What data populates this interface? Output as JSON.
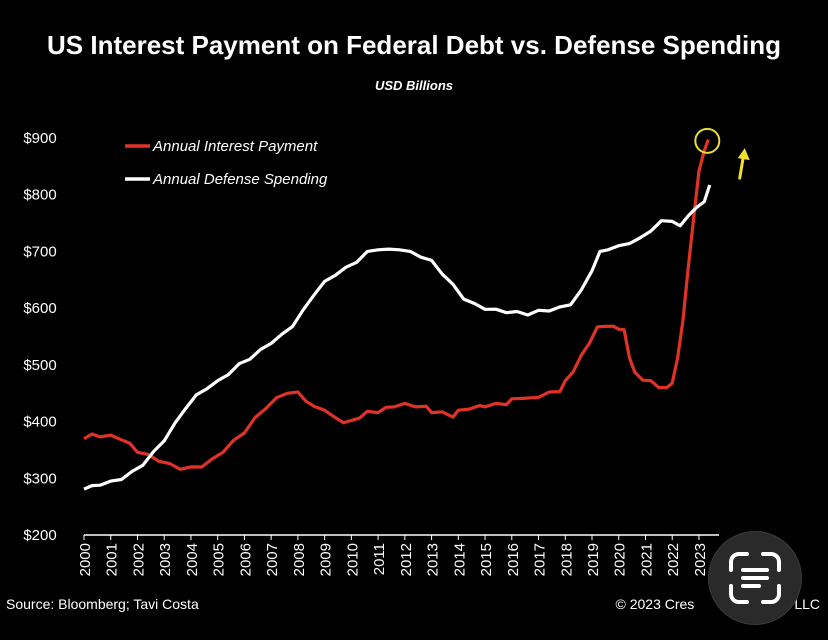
{
  "title": "US Interest Payment on Federal Debt vs. Defense Spending",
  "subtitle": "USD Billions",
  "source": "Source: Bloomberg; Tavi Costa",
  "copyright": "© 2023 Cres",
  "copyright_tail": "LLC",
  "chart_data": {
    "type": "line",
    "title": "US Interest Payment on Federal Debt vs. Defense Spending",
    "subtitle": "USD Billions",
    "xlabel": "",
    "ylabel": "",
    "xlim": [
      2000,
      2023.6
    ],
    "ylim": [
      200,
      900
    ],
    "yticks": [
      "$200",
      "$300",
      "$400",
      "$500",
      "$600",
      "$700",
      "$800",
      "$900"
    ],
    "ytick_values": [
      200,
      300,
      400,
      500,
      600,
      700,
      800,
      900
    ],
    "xticks": [
      "2000",
      "2001",
      "2002",
      "2003",
      "2004",
      "2005",
      "2006",
      "2007",
      "2008",
      "2009",
      "2010",
      "2011",
      "2012",
      "2013",
      "2014",
      "2015",
      "2016",
      "2017",
      "2018",
      "2019",
      "2020",
      "2021",
      "2022",
      "2023"
    ],
    "grid": false,
    "legend": "top-left",
    "series": [
      {
        "name": "Annual Interest Payment",
        "color": "#e03226",
        "points": [
          [
            2000.0,
            372
          ],
          [
            2000.3,
            376
          ],
          [
            2000.6,
            375
          ],
          [
            2001.0,
            374
          ],
          [
            2001.4,
            370
          ],
          [
            2001.7,
            360
          ],
          [
            2002.0,
            348
          ],
          [
            2002.4,
            340
          ],
          [
            2002.8,
            332
          ],
          [
            2003.2,
            324
          ],
          [
            2003.6,
            318
          ],
          [
            2004.0,
            318
          ],
          [
            2004.4,
            322
          ],
          [
            2004.8,
            332
          ],
          [
            2005.2,
            348
          ],
          [
            2005.6,
            365
          ],
          [
            2006.0,
            382
          ],
          [
            2006.4,
            405
          ],
          [
            2006.8,
            425
          ],
          [
            2007.2,
            440
          ],
          [
            2007.6,
            452
          ],
          [
            2008.0,
            450
          ],
          [
            2008.3,
            438
          ],
          [
            2008.6,
            425
          ],
          [
            2009.0,
            422
          ],
          [
            2009.3,
            408
          ],
          [
            2009.7,
            400
          ],
          [
            2010.0,
            400
          ],
          [
            2010.3,
            408
          ],
          [
            2010.6,
            416
          ],
          [
            2011.0,
            418
          ],
          [
            2011.3,
            423
          ],
          [
            2011.6,
            428
          ],
          [
            2012.0,
            430
          ],
          [
            2012.4,
            428
          ],
          [
            2012.8,
            425
          ],
          [
            2013.0,
            418
          ],
          [
            2013.4,
            415
          ],
          [
            2013.8,
            410
          ],
          [
            2014.0,
            418
          ],
          [
            2014.4,
            424
          ],
          [
            2014.8,
            426
          ],
          [
            2015.0,
            428
          ],
          [
            2015.4,
            430
          ],
          [
            2015.8,
            432
          ],
          [
            2016.0,
            438
          ],
          [
            2016.4,
            443
          ],
          [
            2016.8,
            440
          ],
          [
            2017.0,
            445
          ],
          [
            2017.4,
            450
          ],
          [
            2017.8,
            455
          ],
          [
            2018.0,
            470
          ],
          [
            2018.3,
            490
          ],
          [
            2018.6,
            515
          ],
          [
            2018.9,
            540
          ],
          [
            2019.2,
            565
          ],
          [
            2019.5,
            570
          ],
          [
            2019.8,
            566
          ],
          [
            2020.0,
            565
          ],
          [
            2020.2,
            560
          ],
          [
            2020.4,
            515
          ],
          [
            2020.6,
            485
          ],
          [
            2020.9,
            475
          ],
          [
            2021.2,
            470
          ],
          [
            2021.5,
            462
          ],
          [
            2021.8,
            458
          ],
          [
            2022.0,
            470
          ],
          [
            2022.2,
            510
          ],
          [
            2022.4,
            580
          ],
          [
            2022.6,
            670
          ],
          [
            2022.8,
            760
          ],
          [
            2023.0,
            840
          ],
          [
            2023.2,
            880
          ],
          [
            2023.35,
            895
          ]
        ]
      },
      {
        "name": "Annual Defense Spending",
        "color": "#ffffff",
        "points": [
          [
            2000.0,
            283
          ],
          [
            2000.3,
            285
          ],
          [
            2000.6,
            290
          ],
          [
            2001.0,
            293
          ],
          [
            2001.4,
            300
          ],
          [
            2001.8,
            310
          ],
          [
            2002.2,
            325
          ],
          [
            2002.6,
            345
          ],
          [
            2003.0,
            368
          ],
          [
            2003.4,
            395
          ],
          [
            2003.8,
            425
          ],
          [
            2004.2,
            445
          ],
          [
            2004.6,
            460
          ],
          [
            2005.0,
            470
          ],
          [
            2005.4,
            485
          ],
          [
            2005.8,
            500
          ],
          [
            2006.2,
            512
          ],
          [
            2006.6,
            525
          ],
          [
            2007.0,
            540
          ],
          [
            2007.4,
            552
          ],
          [
            2007.8,
            570
          ],
          [
            2008.2,
            595
          ],
          [
            2008.6,
            625
          ],
          [
            2009.0,
            645
          ],
          [
            2009.4,
            660
          ],
          [
            2009.8,
            670
          ],
          [
            2010.2,
            683
          ],
          [
            2010.6,
            698
          ],
          [
            2011.0,
            705
          ],
          [
            2011.4,
            702
          ],
          [
            2011.8,
            705
          ],
          [
            2012.2,
            698
          ],
          [
            2012.6,
            692
          ],
          [
            2013.0,
            682
          ],
          [
            2013.4,
            662
          ],
          [
            2013.8,
            640
          ],
          [
            2014.2,
            618
          ],
          [
            2014.6,
            606
          ],
          [
            2015.0,
            600
          ],
          [
            2015.4,
            596
          ],
          [
            2015.8,
            594
          ],
          [
            2016.2,
            592
          ],
          [
            2016.6,
            590
          ],
          [
            2017.0,
            594
          ],
          [
            2017.4,
            597
          ],
          [
            2017.8,
            600
          ],
          [
            2018.2,
            608
          ],
          [
            2018.6,
            630
          ],
          [
            2019.0,
            668
          ],
          [
            2019.3,
            698
          ],
          [
            2019.6,
            705
          ],
          [
            2020.0,
            708
          ],
          [
            2020.4,
            716
          ],
          [
            2020.8,
            722
          ],
          [
            2021.2,
            738
          ],
          [
            2021.6,
            752
          ],
          [
            2022.0,
            755
          ],
          [
            2022.3,
            743
          ],
          [
            2022.6,
            765
          ],
          [
            2022.9,
            775
          ],
          [
            2023.2,
            790
          ],
          [
            2023.4,
            815
          ]
        ]
      }
    ],
    "annotations": [
      {
        "type": "circle",
        "x": 2023.35,
        "y": 895,
        "color": "#e6dc3c"
      },
      {
        "type": "arrow-up",
        "x": 2024.6,
        "y": 875,
        "color": "#f2e12b"
      }
    ]
  }
}
